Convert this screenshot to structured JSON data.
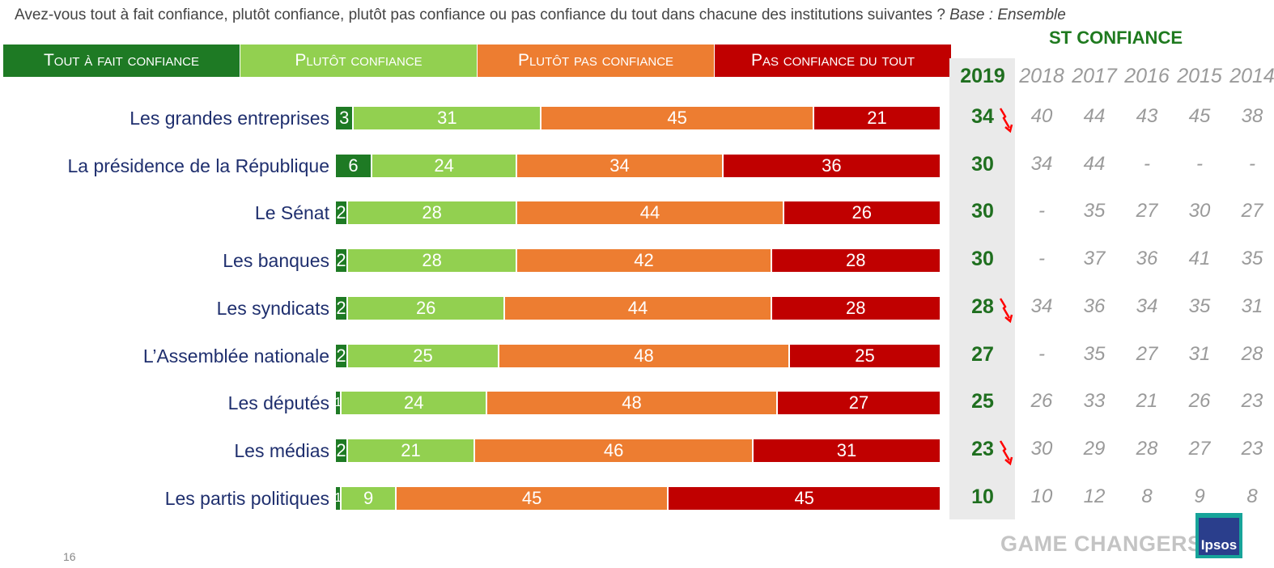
{
  "question": "Avez-vous tout à fait confiance, plutôt confiance, plutôt pas confiance ou pas confiance du tout dans chacune des institutions suivantes ?",
  "base": "Base : Ensemble",
  "st_title": "ST CONFIANCE",
  "page_number": "16",
  "footer_brand": "GAME CHANGERS",
  "logo_text": "Ipsos",
  "colors": {
    "tout_a_fait": "#1e7a24",
    "plutot": "#92d050",
    "plutot_pas": "#ed7d31",
    "pas_du_tout": "#c00000",
    "trend_arrow": "#ff0000"
  },
  "legend": [
    {
      "label": "Tout à fait confiance",
      "color": "#1e7a24"
    },
    {
      "label": "Plutôt confiance",
      "color": "#92d050"
    },
    {
      "label": "Plutôt pas confiance",
      "color": "#ed7d31"
    },
    {
      "label": "Pas confiance du tout",
      "color": "#c00000"
    }
  ],
  "chart_data": {
    "type": "bar",
    "stacked": true,
    "orientation": "horizontal",
    "categories": [
      "Les grandes entreprises",
      "La présidence de la République",
      "Le Sénat",
      "Les banques",
      "Les syndicats",
      "L’Assemblée nationale",
      "Les députés",
      "Les médias",
      "Les partis politiques"
    ],
    "series": [
      {
        "name": "Tout à fait confiance",
        "values": [
          3,
          6,
          2,
          2,
          2,
          2,
          1,
          2,
          1
        ]
      },
      {
        "name": "Plutôt confiance",
        "values": [
          31,
          24,
          28,
          28,
          26,
          25,
          24,
          21,
          9
        ]
      },
      {
        "name": "Plutôt pas confiance",
        "values": [
          45,
          34,
          44,
          42,
          44,
          48,
          48,
          46,
          45
        ]
      },
      {
        "name": "Pas confiance du tout",
        "values": [
          21,
          36,
          26,
          28,
          28,
          25,
          27,
          31,
          45
        ]
      }
    ],
    "st_confiance": {
      "years": [
        "2019",
        "2018",
        "2017",
        "2016",
        "2015",
        "2014"
      ],
      "values": [
        [
          "34",
          "40",
          "44",
          "43",
          "45",
          "38"
        ],
        [
          "30",
          "34",
          "44",
          "-",
          "-",
          "-"
        ],
        [
          "30",
          "-",
          "35",
          "27",
          "30",
          "27"
        ],
        [
          "30",
          "-",
          "37",
          "36",
          "41",
          "35"
        ],
        [
          "28",
          "34",
          "36",
          "34",
          "35",
          "31"
        ],
        [
          "27",
          "-",
          "35",
          "27",
          "31",
          "28"
        ],
        [
          "25",
          "26",
          "33",
          "21",
          "26",
          "23"
        ],
        [
          "23",
          "30",
          "29",
          "28",
          "27",
          "23"
        ],
        [
          "10",
          "10",
          "12",
          "8",
          "9",
          "8"
        ]
      ],
      "decline_arrow": [
        true,
        false,
        false,
        false,
        true,
        false,
        false,
        true,
        false
      ]
    },
    "xlim": [
      0,
      100
    ]
  }
}
